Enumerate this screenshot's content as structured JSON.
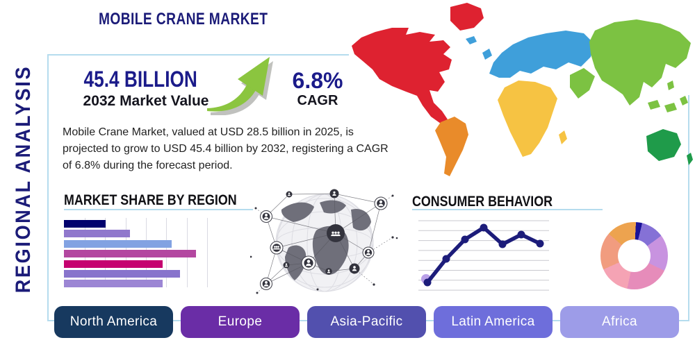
{
  "title": "MOBILE CRANE MARKET",
  "side_label": "REGIONAL ANALYSIS",
  "stats": {
    "market_value": "45.4 BILLION",
    "market_value_caption": "2032 Market Value",
    "cagr_value": "6.8%",
    "cagr_caption": "CAGR"
  },
  "description_lines": [
    "Mobile Crane Market, valued at USD 28.5 billion in 2025, is",
    "projected to grow to USD 45.4 billion by 2032, registering a CAGR",
    "of 6.8% during the forecast period."
  ],
  "sections": {
    "market_share_heading": "MARKET SHARE BY REGION",
    "consumer_behavior_heading": "CONSUMER BEHAVIOR"
  },
  "region_buttons": [
    {
      "label": "North America",
      "color": "#17395f"
    },
    {
      "label": "Europe",
      "color": "#6a2da6"
    },
    {
      "label": "Asia-Pacific",
      "color": "#5250ae"
    },
    {
      "label": "Latin America",
      "color": "#6e6edb"
    },
    {
      "label": "Africa",
      "color": "#9d9ce8"
    }
  ],
  "map_regions": [
    {
      "name": "North America",
      "color": "#de2230"
    },
    {
      "name": "South America",
      "color": "#e98b2a"
    },
    {
      "name": "Europe",
      "color": "#3f9fda"
    },
    {
      "name": "Africa",
      "color": "#f6c343"
    },
    {
      "name": "Asia",
      "color": "#7cc242"
    },
    {
      "name": "Australia",
      "color": "#1f9b4a"
    }
  ],
  "accent_colors": {
    "navy": "#1b1b78",
    "light_blue_rule": "#b5dcee",
    "arrow_green": "#8bc53f"
  },
  "chart_data": [
    {
      "type": "bar",
      "title": "MARKET SHARE BY REGION",
      "orientation": "horizontal",
      "values": [
        29,
        46,
        75,
        92,
        69,
        81,
        69
      ],
      "value_note": "estimated share, no axis labels shown",
      "xlim": [
        0,
        100
      ],
      "grid": true,
      "colors": [
        "#02026e",
        "#9078cc",
        "#82a2e2",
        "#b347a0",
        "#c50270",
        "#8874cc",
        "#9c86d4"
      ]
    },
    {
      "type": "line",
      "title": "CONSUMER BEHAVIOR",
      "x": [
        1,
        2,
        3,
        4,
        5,
        6,
        7
      ],
      "values": [
        11,
        45,
        73,
        90,
        66,
        80,
        67
      ],
      "ylim": [
        0,
        100
      ],
      "grid": "horizontal",
      "line_color": "#1c1c7a",
      "start_dot_color": "#b9a0e8"
    },
    {
      "type": "pie",
      "subtype": "donut",
      "start_angle_deg": 3,
      "segments": [
        {
          "value": 3,
          "color": "#1a1299"
        },
        {
          "value": 11,
          "color": "#8571d6"
        },
        {
          "value": 17.5,
          "color": "#c893e0"
        },
        {
          "value": 21,
          "color": "#e68cba"
        },
        {
          "value": 15,
          "color": "#f5a3b4"
        },
        {
          "value": 18,
          "color": "#f19c7f"
        },
        {
          "value": 14.5,
          "color": "#eda34f"
        }
      ]
    }
  ]
}
